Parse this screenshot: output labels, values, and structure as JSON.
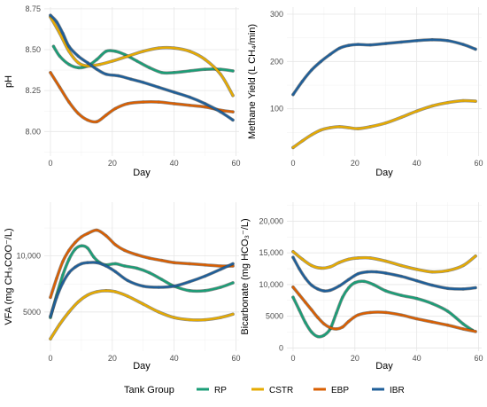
{
  "colors": {
    "RP": "#1b9e77",
    "CSTR": "#e6ab02",
    "EBP": "#d95f02",
    "IBR": "#1f5f99"
  },
  "legend": {
    "title": "Tank Group",
    "items": [
      {
        "label": "RP",
        "color": "#1b9e77"
      },
      {
        "label": "CSTR",
        "color": "#e6ab02"
      },
      {
        "label": "EBP",
        "color": "#d95f02"
      },
      {
        "label": "IBR",
        "color": "#1f5f99"
      }
    ]
  },
  "chart_data": [
    {
      "id": "ph",
      "type": "line",
      "title": "",
      "xlabel": "Day",
      "ylabel": "pH",
      "xlim": [
        -2,
        61
      ],
      "ylim": [
        7.85,
        8.76
      ],
      "xticks": [
        0,
        20,
        40,
        60
      ],
      "yticks": [
        8.0,
        8.25,
        8.5,
        8.75
      ],
      "ytick_labels": [
        "8.00",
        "8.25",
        "8.50",
        "8.75"
      ],
      "grid": true,
      "series": [
        {
          "name": "RP",
          "x": [
            1,
            3,
            6,
            9,
            12,
            15,
            18,
            21,
            24,
            28,
            32,
            36,
            40,
            45,
            50,
            55,
            59
          ],
          "y": [
            8.52,
            8.46,
            8.41,
            8.39,
            8.4,
            8.44,
            8.49,
            8.49,
            8.47,
            8.43,
            8.39,
            8.36,
            8.36,
            8.37,
            8.38,
            8.38,
            8.37
          ]
        },
        {
          "name": "CSTR",
          "x": [
            0,
            3,
            6,
            9,
            12,
            16,
            20,
            25,
            30,
            35,
            40,
            45,
            50,
            55,
            59
          ],
          "y": [
            8.7,
            8.6,
            8.49,
            8.42,
            8.4,
            8.41,
            8.43,
            8.46,
            8.49,
            8.51,
            8.51,
            8.49,
            8.44,
            8.35,
            8.22
          ]
        },
        {
          "name": "EBP",
          "x": [
            0,
            3,
            6,
            9,
            12,
            15,
            18,
            21,
            25,
            30,
            35,
            40,
            45,
            50,
            55,
            59
          ],
          "y": [
            8.36,
            8.27,
            8.18,
            8.11,
            8.07,
            8.06,
            8.1,
            8.14,
            8.17,
            8.18,
            8.18,
            8.17,
            8.16,
            8.15,
            8.13,
            8.12
          ]
        },
        {
          "name": "IBR",
          "x": [
            0,
            2,
            4,
            6,
            9,
            12,
            15,
            18,
            22,
            26,
            30,
            35,
            40,
            45,
            50,
            55,
            59
          ],
          "y": [
            8.71,
            8.67,
            8.6,
            8.52,
            8.46,
            8.42,
            8.38,
            8.35,
            8.34,
            8.32,
            8.3,
            8.27,
            8.24,
            8.21,
            8.17,
            8.12,
            8.07
          ]
        }
      ]
    },
    {
      "id": "methane",
      "type": "line",
      "title": "",
      "xlabel": "Day",
      "ylabel": "Methane Yield (L CH₄/min)",
      "xlim": [
        -2,
        61
      ],
      "ylim": [
        0,
        315
      ],
      "xticks": [
        0,
        20,
        40,
        60
      ],
      "yticks": [
        100,
        200,
        300
      ],
      "ytick_labels": [
        "100",
        "200",
        "300"
      ],
      "grid": true,
      "series": [
        {
          "name": "CSTR",
          "x": [
            0,
            3,
            6,
            9,
            12,
            15,
            18,
            21,
            25,
            30,
            35,
            40,
            45,
            50,
            55,
            59
          ],
          "y": [
            18,
            32,
            45,
            55,
            60,
            62,
            60,
            58,
            62,
            70,
            82,
            95,
            106,
            113,
            117,
            116
          ]
        },
        {
          "name": "IBR",
          "x": [
            0,
            3,
            6,
            9,
            12,
            15,
            18,
            21,
            25,
            30,
            35,
            40,
            45,
            50,
            55,
            59
          ],
          "y": [
            130,
            158,
            182,
            200,
            215,
            228,
            234,
            236,
            235,
            238,
            241,
            244,
            246,
            244,
            236,
            226
          ]
        }
      ]
    },
    {
      "id": "vfa",
      "type": "line",
      "title": "",
      "xlabel": "Day",
      "ylabel": "VFA (mg CH₃COO⁻/L)",
      "xlim": [
        -2,
        61
      ],
      "ylim": [
        1500,
        14800
      ],
      "xticks": [
        0,
        20,
        40,
        60
      ],
      "yticks": [
        5000,
        10000
      ],
      "ytick_labels": [
        "5000",
        "10,000"
      ],
      "grid": true,
      "series": [
        {
          "name": "RP",
          "x": [
            0,
            2,
            4,
            6,
            8,
            10,
            12,
            14,
            16,
            18,
            21,
            24,
            28,
            32,
            36,
            40,
            45,
            50,
            55,
            59
          ],
          "y": [
            4500,
            6500,
            8300,
            9700,
            10600,
            10900,
            10700,
            9900,
            9400,
            9200,
            9300,
            9100,
            8900,
            8500,
            7900,
            7300,
            6900,
            6900,
            7200,
            7600
          ]
        },
        {
          "name": "CSTR",
          "x": [
            0,
            3,
            6,
            9,
            12,
            15,
            18,
            21,
            25,
            30,
            35,
            40,
            45,
            50,
            55,
            59
          ],
          "y": [
            2600,
            3900,
            5000,
            5900,
            6500,
            6800,
            6900,
            6800,
            6400,
            5700,
            5000,
            4500,
            4300,
            4300,
            4500,
            4800
          ]
        },
        {
          "name": "EBP",
          "x": [
            0,
            2,
            4,
            6,
            8,
            10,
            12,
            15,
            18,
            21,
            24,
            28,
            32,
            36,
            40,
            45,
            50,
            55,
            59
          ],
          "y": [
            6300,
            8000,
            9500,
            10500,
            11200,
            11700,
            12000,
            12300,
            11800,
            11000,
            10500,
            10100,
            9800,
            9600,
            9400,
            9300,
            9200,
            9100,
            9100
          ]
        },
        {
          "name": "IBR",
          "x": [
            0,
            2,
            4,
            6,
            8,
            10,
            12,
            15,
            18,
            21,
            25,
            30,
            35,
            40,
            45,
            50,
            55,
            59
          ],
          "y": [
            4600,
            6300,
            7600,
            8500,
            9000,
            9300,
            9400,
            9400,
            9100,
            8600,
            7800,
            7300,
            7200,
            7300,
            7700,
            8200,
            8800,
            9300
          ]
        }
      ]
    },
    {
      "id": "bicarbonate",
      "type": "line",
      "title": "",
      "xlabel": "Day",
      "ylabel": "Bicarbonate (mg HCO₃⁻/L)",
      "xlim": [
        -2,
        61
      ],
      "ylim": [
        -500,
        23000
      ],
      "xticks": [
        0,
        20,
        40,
        60
      ],
      "yticks": [
        0,
        5000,
        10000,
        15000,
        20000
      ],
      "ytick_labels": [
        "0",
        "5000",
        "10,000",
        "15,000",
        "20,000"
      ],
      "grid": true,
      "series": [
        {
          "name": "RP",
          "x": [
            0,
            2,
            4,
            6,
            8,
            10,
            12,
            14,
            16,
            18,
            20,
            23,
            26,
            30,
            35,
            40,
            45,
            50,
            55,
            58
          ],
          "y": [
            8000,
            6000,
            4000,
            2500,
            1800,
            2000,
            3000,
            5500,
            8000,
            9500,
            10300,
            10500,
            10000,
            9000,
            8300,
            7800,
            7000,
            5800,
            3800,
            2800
          ]
        },
        {
          "name": "CSTR",
          "x": [
            0,
            3,
            6,
            9,
            12,
            15,
            18,
            21,
            25,
            30,
            35,
            40,
            45,
            50,
            55,
            59
          ],
          "y": [
            15200,
            14000,
            13000,
            12600,
            12800,
            13500,
            14000,
            14200,
            14200,
            13700,
            13000,
            12400,
            12000,
            12200,
            13000,
            14500
          ]
        },
        {
          "name": "EBP",
          "x": [
            0,
            2,
            4,
            6,
            8,
            10,
            12,
            14,
            16,
            18,
            21,
            25,
            30,
            35,
            40,
            45,
            50,
            55,
            59
          ],
          "y": [
            9600,
            8400,
            7200,
            6000,
            4800,
            3800,
            3200,
            3000,
            3300,
            4200,
            5200,
            5600,
            5600,
            5200,
            4600,
            4100,
            3600,
            3000,
            2600
          ]
        },
        {
          "name": "IBR",
          "x": [
            0,
            2,
            4,
            6,
            8,
            10,
            12,
            15,
            18,
            21,
            24,
            27,
            30,
            35,
            40,
            45,
            50,
            55,
            59
          ],
          "y": [
            14300,
            12500,
            11000,
            9900,
            9300,
            9000,
            9100,
            9800,
            10800,
            11700,
            12000,
            12000,
            11800,
            11300,
            10600,
            9900,
            9400,
            9300,
            9500
          ]
        }
      ]
    }
  ]
}
